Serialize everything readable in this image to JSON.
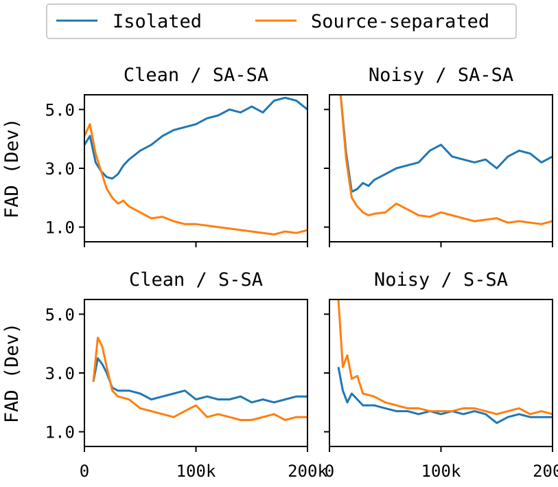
{
  "legend": {
    "entries": [
      {
        "label": "Isolated",
        "color": "#1f77b4"
      },
      {
        "label": "Source-separated",
        "color": "#ff7f0e"
      }
    ],
    "placement": "top-center"
  },
  "chart_data": [
    {
      "type": "line",
      "title": "Clean / SA-SA",
      "ylabel": "FAD (Dev)",
      "xlabel": "",
      "xlim": [
        0,
        200000
      ],
      "ylim": [
        0.5,
        5.5
      ],
      "xticks": [
        0,
        100000,
        200000
      ],
      "xtick_labels": [
        "",
        "",
        ""
      ],
      "yticks": [
        1.0,
        3.0,
        5.0
      ],
      "ytick_labels": [
        "1.0",
        "3.0",
        "5.0"
      ],
      "series": [
        {
          "name": "Isolated",
          "color": "#1f77b4",
          "x": [
            0,
            5000,
            10000,
            15000,
            20000,
            25000,
            30000,
            35000,
            40000,
            50000,
            60000,
            70000,
            80000,
            90000,
            100000,
            110000,
            120000,
            130000,
            140000,
            150000,
            160000,
            170000,
            180000,
            190000,
            200000
          ],
          "y": [
            3.8,
            4.1,
            3.2,
            2.9,
            2.7,
            2.65,
            2.8,
            3.1,
            3.3,
            3.6,
            3.8,
            4.1,
            4.3,
            4.4,
            4.5,
            4.7,
            4.8,
            5.0,
            4.9,
            5.1,
            4.9,
            5.3,
            5.4,
            5.3,
            5.0
          ]
        },
        {
          "name": "Source-separated",
          "color": "#ff7f0e",
          "x": [
            0,
            5000,
            10000,
            15000,
            20000,
            25000,
            30000,
            35000,
            40000,
            50000,
            60000,
            70000,
            80000,
            90000,
            100000,
            110000,
            120000,
            130000,
            140000,
            150000,
            160000,
            170000,
            180000,
            190000,
            200000
          ],
          "y": [
            4.1,
            4.5,
            3.5,
            2.9,
            2.3,
            2.0,
            1.8,
            1.9,
            1.7,
            1.5,
            1.3,
            1.35,
            1.2,
            1.1,
            1.1,
            1.05,
            1.0,
            0.95,
            0.9,
            0.85,
            0.8,
            0.75,
            0.85,
            0.8,
            0.9
          ]
        }
      ]
    },
    {
      "type": "line",
      "title": "Noisy / SA-SA",
      "ylabel": "",
      "xlabel": "",
      "xlim": [
        0,
        200000
      ],
      "ylim": [
        0.5,
        5.5
      ],
      "xticks": [
        0,
        100000,
        200000
      ],
      "xtick_labels": [
        "",
        "",
        ""
      ],
      "yticks": [
        1.0,
        3.0,
        5.0
      ],
      "ytick_labels": [
        "",
        "",
        ""
      ],
      "series": [
        {
          "name": "Isolated",
          "color": "#1f77b4",
          "x": [
            10000,
            15000,
            20000,
            25000,
            30000,
            35000,
            40000,
            50000,
            60000,
            70000,
            80000,
            90000,
            100000,
            110000,
            120000,
            130000,
            140000,
            150000,
            160000,
            170000,
            180000,
            190000,
            200000
          ],
          "y": [
            5.5,
            3.5,
            2.2,
            2.3,
            2.5,
            2.4,
            2.6,
            2.8,
            3.0,
            3.1,
            3.2,
            3.6,
            3.8,
            3.4,
            3.3,
            3.2,
            3.3,
            3.0,
            3.4,
            3.6,
            3.5,
            3.2,
            3.4
          ]
        },
        {
          "name": "Source-separated",
          "color": "#ff7f0e",
          "x": [
            10000,
            15000,
            20000,
            25000,
            30000,
            35000,
            40000,
            50000,
            60000,
            70000,
            80000,
            90000,
            100000,
            110000,
            120000,
            130000,
            140000,
            150000,
            160000,
            170000,
            180000,
            190000,
            200000
          ],
          "y": [
            5.5,
            3.3,
            2.0,
            1.7,
            1.5,
            1.4,
            1.45,
            1.5,
            1.8,
            1.6,
            1.4,
            1.35,
            1.5,
            1.4,
            1.3,
            1.2,
            1.25,
            1.3,
            1.15,
            1.2,
            1.15,
            1.1,
            1.2
          ]
        }
      ]
    },
    {
      "type": "line",
      "title": "Clean / S-SA",
      "ylabel": "FAD (Dev)",
      "xlabel": "",
      "xlim": [
        0,
        200000
      ],
      "ylim": [
        0.5,
        5.5
      ],
      "xticks": [
        0,
        100000,
        200000
      ],
      "xtick_labels": [
        "0",
        "100k",
        "200k"
      ],
      "yticks": [
        1.0,
        3.0,
        5.0
      ],
      "ytick_labels": [
        "1.0",
        "3.0",
        "5.0"
      ],
      "series": [
        {
          "name": "Isolated",
          "color": "#1f77b4",
          "x": [
            8000,
            12000,
            16000,
            20000,
            25000,
            30000,
            40000,
            50000,
            60000,
            70000,
            80000,
            90000,
            100000,
            110000,
            120000,
            130000,
            140000,
            150000,
            160000,
            170000,
            180000,
            190000,
            200000
          ],
          "y": [
            2.7,
            3.5,
            3.3,
            3.0,
            2.5,
            2.4,
            2.4,
            2.3,
            2.1,
            2.2,
            2.3,
            2.4,
            2.1,
            2.2,
            2.1,
            2.1,
            2.2,
            2.0,
            2.1,
            2.0,
            2.1,
            2.2,
            2.2
          ]
        },
        {
          "name": "Source-separated",
          "color": "#ff7f0e",
          "x": [
            8000,
            12000,
            16000,
            20000,
            25000,
            30000,
            40000,
            50000,
            60000,
            70000,
            80000,
            90000,
            100000,
            110000,
            120000,
            130000,
            140000,
            150000,
            160000,
            170000,
            180000,
            190000,
            200000
          ],
          "y": [
            2.7,
            4.2,
            3.9,
            3.2,
            2.4,
            2.2,
            2.1,
            1.8,
            1.7,
            1.6,
            1.5,
            1.7,
            1.9,
            1.5,
            1.6,
            1.5,
            1.4,
            1.4,
            1.5,
            1.6,
            1.4,
            1.5,
            1.5
          ]
        }
      ]
    },
    {
      "type": "line",
      "title": "Noisy / S-SA",
      "ylabel": "",
      "xlabel": "",
      "xlim": [
        0,
        200000
      ],
      "ylim": [
        0.5,
        5.5
      ],
      "xticks": [
        0,
        100000,
        200000
      ],
      "xtick_labels": [
        "0",
        "100k",
        "200k"
      ],
      "yticks": [
        1.0,
        3.0,
        5.0
      ],
      "ytick_labels": [
        "",
        "",
        ""
      ],
      "series": [
        {
          "name": "Isolated",
          "color": "#1f77b4",
          "x": [
            8000,
            12000,
            16000,
            20000,
            25000,
            30000,
            40000,
            50000,
            60000,
            70000,
            80000,
            90000,
            100000,
            110000,
            120000,
            130000,
            140000,
            150000,
            160000,
            170000,
            180000,
            190000,
            200000
          ],
          "y": [
            3.2,
            2.4,
            2.0,
            2.3,
            2.1,
            1.9,
            1.9,
            1.8,
            1.7,
            1.7,
            1.6,
            1.7,
            1.6,
            1.7,
            1.6,
            1.7,
            1.6,
            1.3,
            1.5,
            1.6,
            1.5,
            1.5,
            1.5
          ]
        },
        {
          "name": "Source-separated",
          "color": "#ff7f0e",
          "x": [
            8000,
            12000,
            16000,
            20000,
            25000,
            30000,
            40000,
            50000,
            60000,
            70000,
            80000,
            90000,
            100000,
            110000,
            120000,
            130000,
            140000,
            150000,
            160000,
            170000,
            180000,
            190000,
            200000
          ],
          "y": [
            5.5,
            3.2,
            3.6,
            2.8,
            2.9,
            2.3,
            2.2,
            2.0,
            1.9,
            1.8,
            1.8,
            1.7,
            1.7,
            1.7,
            1.8,
            1.8,
            1.7,
            1.6,
            1.7,
            1.8,
            1.6,
            1.7,
            1.6
          ]
        }
      ]
    }
  ]
}
